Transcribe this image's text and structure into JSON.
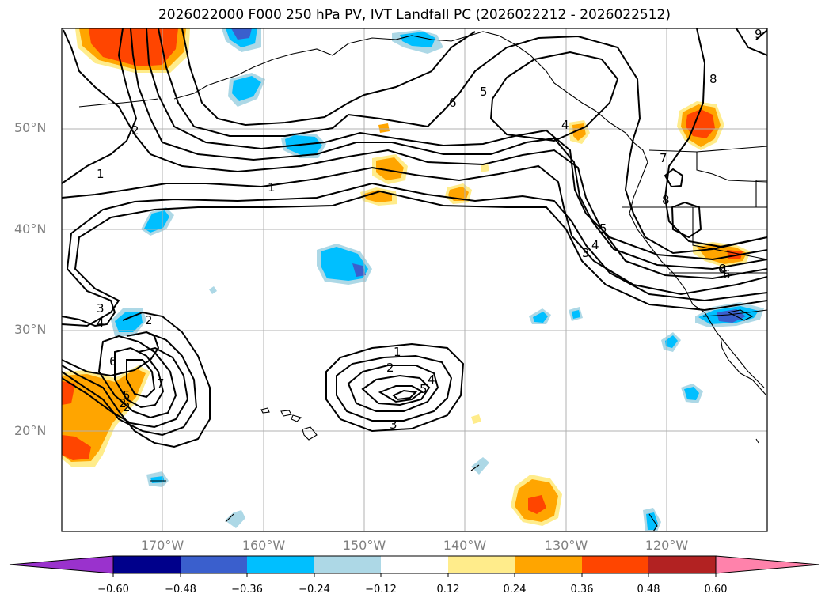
{
  "title": "2026022000 F000 250 hPa PV, IVT Landfall PC (2026022212 - 2026022512)",
  "lat_labels": [
    "50°N",
    "40°N",
    "30°N",
    "20°N"
  ],
  "lon_labels": [
    "170°W",
    "160°W",
    "150°W",
    "140°W",
    "130°W",
    "120°W"
  ],
  "colorbar": {
    "ticks": [
      "−0.60",
      "−0.48",
      "−0.36",
      "−0.24",
      "−0.12",
      "0.12",
      "0.24",
      "0.36",
      "0.48",
      "0.60"
    ],
    "colors": [
      "#9a32cd",
      "#00008b",
      "#3a5fcd",
      "#00bfff",
      "#add8e6",
      "#ffffff",
      "#ffec8b",
      "#ffa500",
      "#ff4500",
      "#b22222",
      "#ff82ab"
    ]
  },
  "contour_labels": [
    "1",
    "1",
    "2",
    "2",
    "3",
    "4",
    "2",
    "6",
    "7",
    "5",
    "1",
    "2",
    "3",
    "4",
    "5",
    "6",
    "5",
    "4",
    "3",
    "4",
    "5",
    "8",
    "7",
    "8",
    "6",
    "6",
    "4",
    "2",
    "9"
  ]
}
